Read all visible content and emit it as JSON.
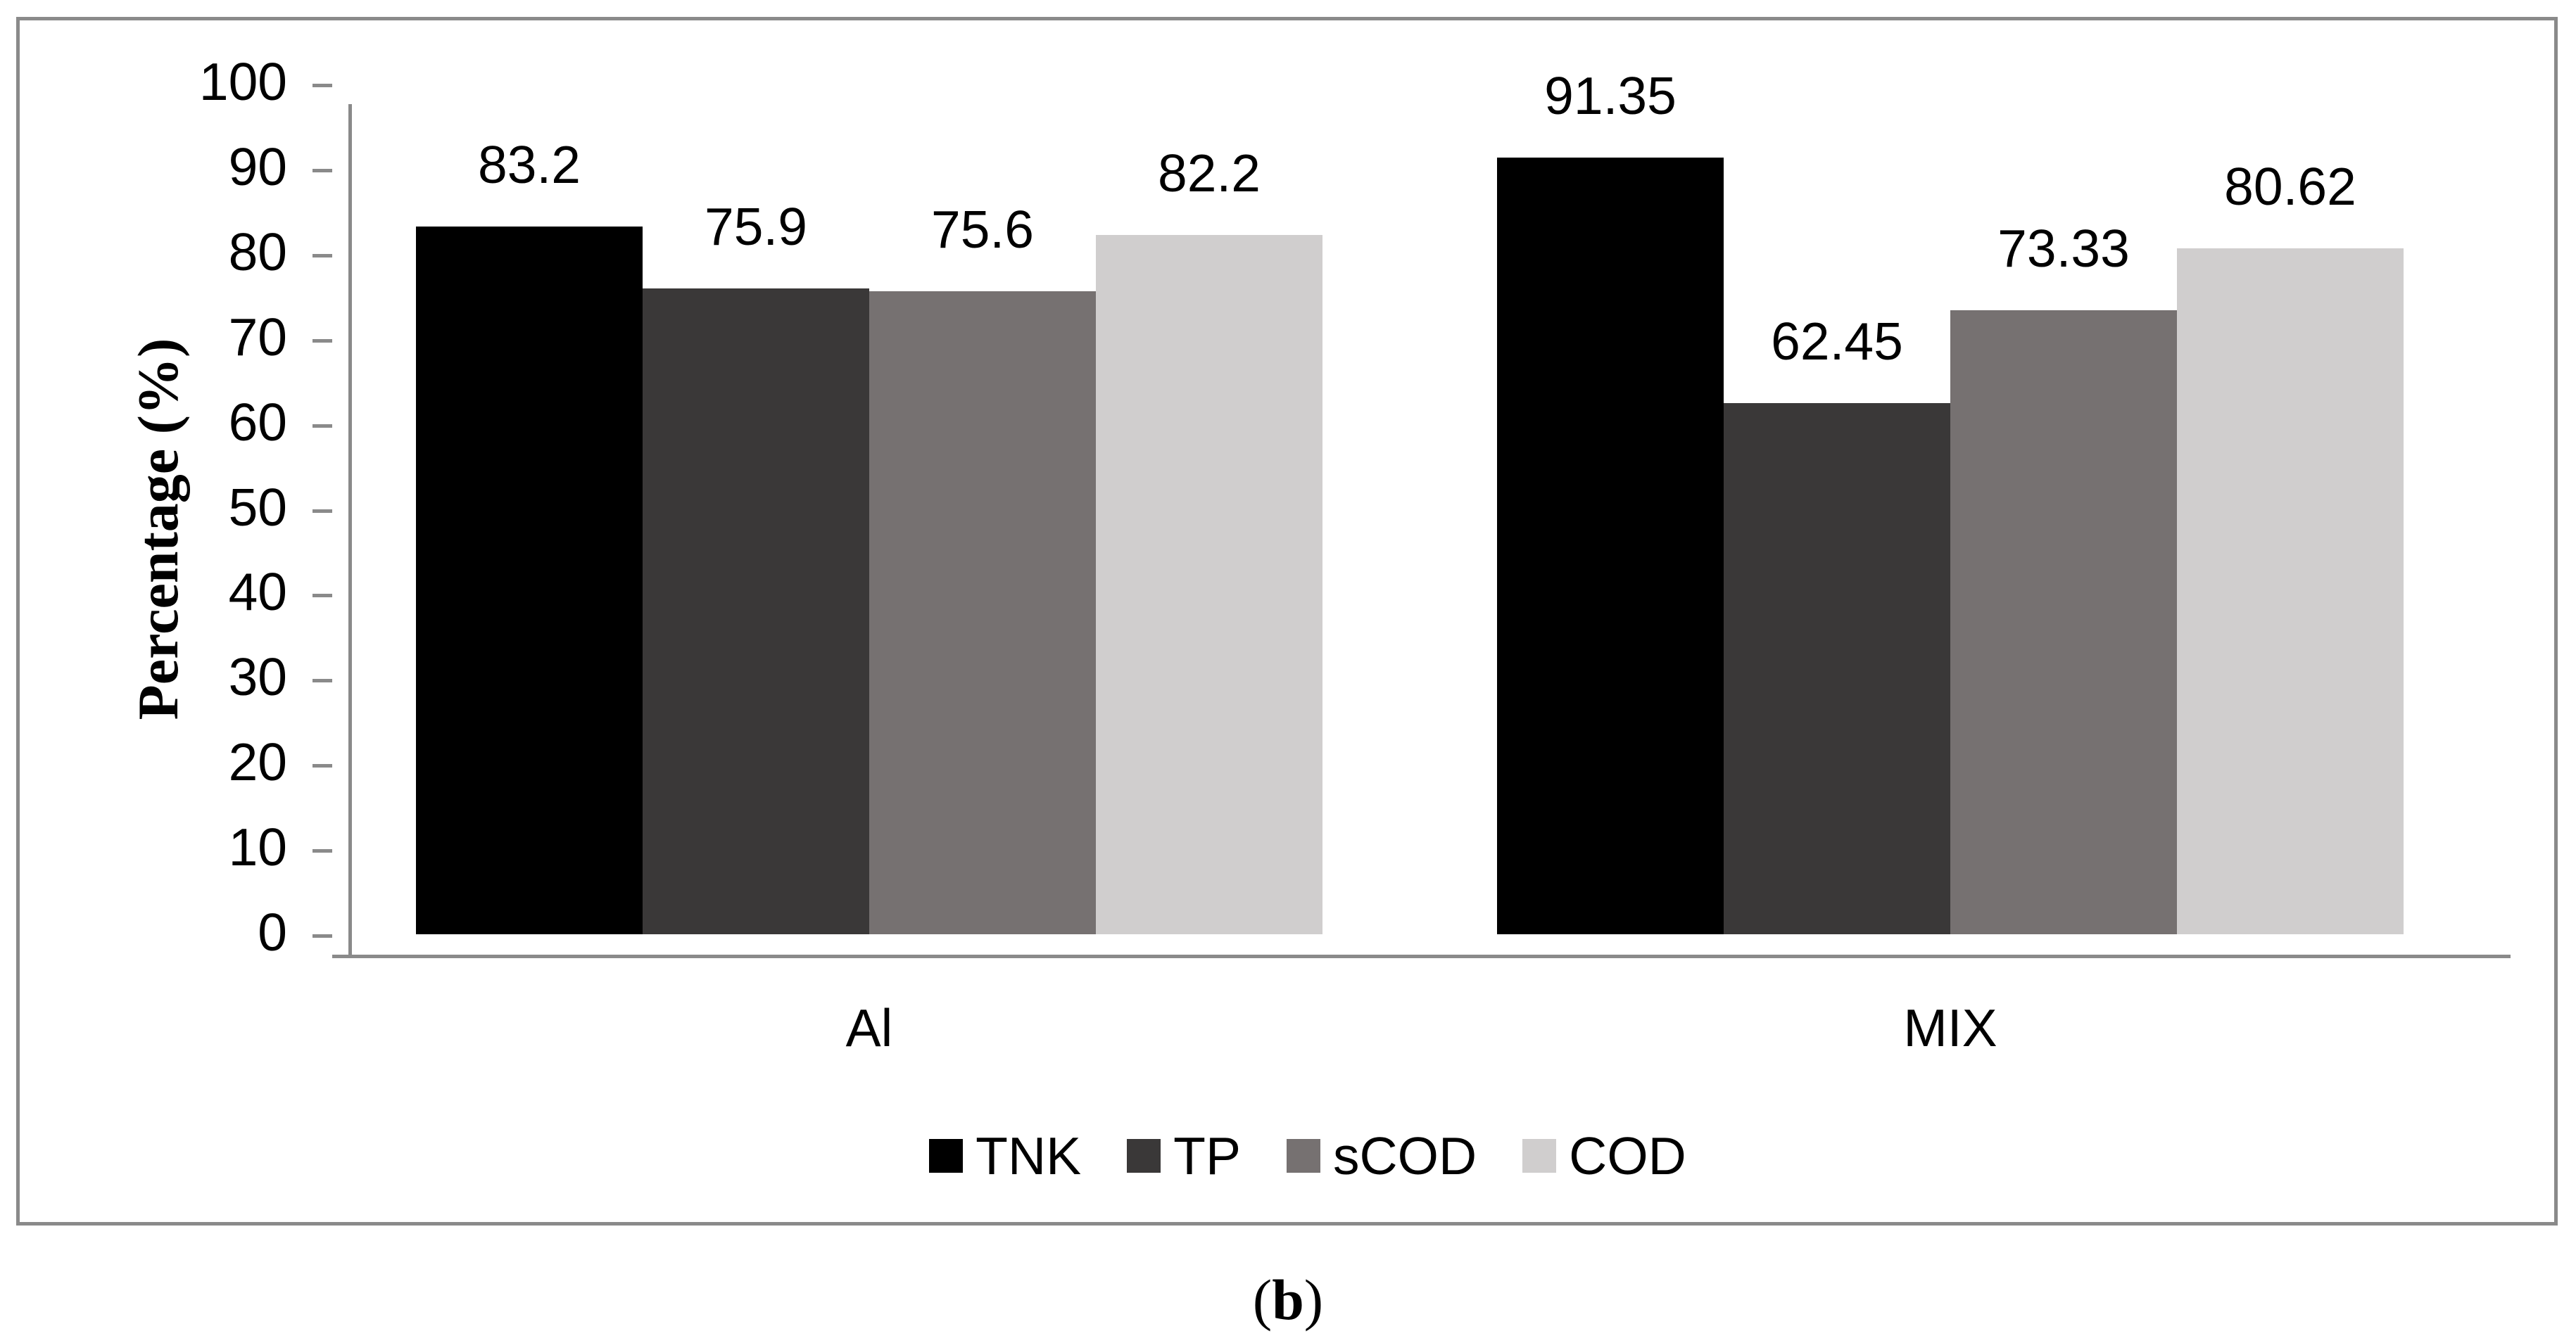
{
  "figure": {
    "caption_open": "(",
    "caption_letter": "b",
    "caption_close": ")"
  },
  "chart_data": {
    "type": "bar",
    "title": "",
    "xlabel": "",
    "ylabel": "Percentage (%)",
    "ylim": [
      0,
      100
    ],
    "ytick_step": 10,
    "yticks": [
      0,
      10,
      20,
      30,
      40,
      50,
      60,
      70,
      80,
      90,
      100
    ],
    "categories": [
      "Al",
      "MIX"
    ],
    "series": [
      {
        "name": "TNK",
        "color": "#000000",
        "values": [
          83.2,
          91.35
        ]
      },
      {
        "name": "TP",
        "color": "#3a3838",
        "values": [
          75.9,
          62.45
        ]
      },
      {
        "name": "sCOD",
        "color": "#767171",
        "values": [
          75.6,
          73.33
        ]
      },
      {
        "name": "COD",
        "color": "#d0cece",
        "values": [
          82.2,
          80.62
        ]
      }
    ],
    "value_labels": {
      "Al": [
        "83.2",
        "75.9",
        "75.6",
        "82.2"
      ],
      "MIX": [
        "91.35",
        "62.45",
        "73.33",
        "80.62"
      ]
    },
    "grid": false,
    "legend_position": "bottom",
    "axis_color": "#8a8a8a",
    "border_color": "#8a8a8a",
    "background_color": "#ffffff",
    "text_color": "#000000"
  }
}
